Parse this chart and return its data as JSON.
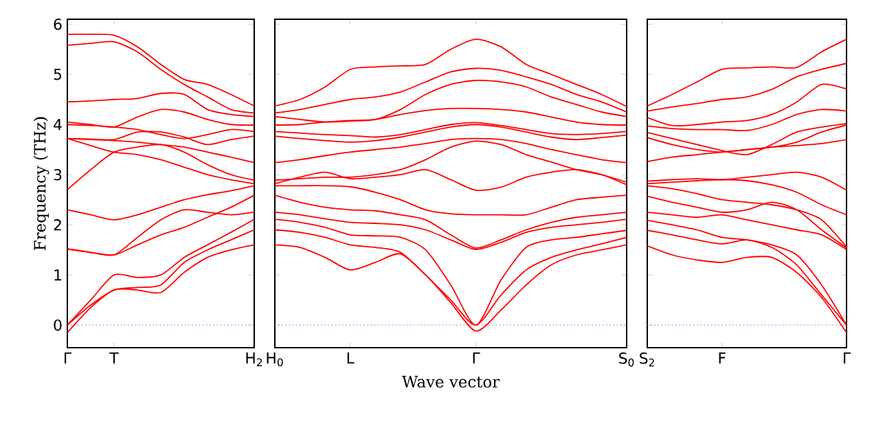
{
  "chart_data": [
    {
      "type": "line",
      "ylabel": "Frequency (THz)",
      "marker": "none",
      "line_style": "solid",
      "categories": [
        "Γ",
        null,
        "T",
        null,
        null,
        null,
        null,
        null,
        "H$_{2}$"
      ],
      "ylim": [
        -0.45,
        6.1
      ],
      "yticks": [
        0,
        1,
        2,
        3,
        4,
        5,
        6
      ],
      "ref_lines": [
        {
          "axis": "y",
          "value": 0,
          "color": "#6a6aff",
          "line_style": "dotted"
        }
      ],
      "series": [
        {
          "color": "#ff0000",
          "values": [
            5.8,
            5.8,
            5.78,
            5.55,
            5.2,
            4.9,
            4.8,
            4.6,
            4.37
          ]
        },
        {
          "color": "#ff0000",
          "values": [
            5.58,
            5.62,
            5.65,
            5.45,
            5.1,
            4.8,
            4.55,
            4.3,
            4.23
          ]
        },
        {
          "color": "#ff0000",
          "values": [
            4.45,
            4.47,
            4.5,
            4.52,
            4.62,
            4.6,
            4.3,
            4.2,
            4.16
          ]
        },
        {
          "color": "#ff0000",
          "values": [
            4.05,
            4.0,
            3.95,
            4.15,
            4.3,
            4.25,
            4.1,
            4.0,
            3.99
          ]
        },
        {
          "color": "#ff0000",
          "values": [
            4.0,
            3.98,
            3.95,
            3.9,
            3.8,
            3.72,
            3.8,
            3.9,
            3.86
          ]
        },
        {
          "color": "#ff0000",
          "values": [
            3.72,
            3.71,
            3.7,
            3.85,
            3.85,
            3.75,
            3.6,
            3.7,
            3.77
          ]
        },
        {
          "color": "#ff0000",
          "values": [
            3.72,
            3.7,
            3.68,
            3.65,
            3.6,
            3.55,
            3.45,
            3.35,
            3.24
          ]
        },
        {
          "color": "#ff0000",
          "values": [
            2.7,
            3.1,
            3.45,
            3.55,
            3.6,
            3.45,
            3.2,
            3.0,
            2.89
          ]
        },
        {
          "color": "#ff0000",
          "values": [
            3.72,
            3.58,
            3.45,
            3.4,
            3.3,
            3.15,
            3.0,
            2.9,
            2.82
          ]
        },
        {
          "color": "#ff0000",
          "values": [
            2.3,
            2.2,
            2.1,
            2.2,
            2.35,
            2.5,
            2.6,
            2.68,
            2.78
          ]
        },
        {
          "color": "#ff0000",
          "values": [
            1.52,
            1.45,
            1.4,
            1.75,
            2.1,
            2.3,
            2.25,
            2.2,
            2.25
          ]
        },
        {
          "color": "#ff0000",
          "values": [
            1.52,
            1.45,
            1.4,
            1.6,
            1.8,
            1.95,
            2.15,
            2.35,
            2.59
          ]
        },
        {
          "color": "#ff0000",
          "values": [
            0,
            0.5,
            1.0,
            0.95,
            1.0,
            1.35,
            1.6,
            1.85,
            2.11
          ]
        },
        {
          "color": "#ff0000",
          "values": [
            0,
            0.4,
            0.7,
            0.75,
            0.8,
            1.25,
            1.5,
            1.7,
            1.9
          ]
        },
        {
          "color": "#ff0000",
          "values": [
            -0.15,
            0.35,
            0.7,
            0.7,
            0.65,
            1.05,
            1.35,
            1.5,
            1.6
          ]
        }
      ]
    },
    {
      "type": "line",
      "xlabel": "Wave vector",
      "marker": "none",
      "line_style": "solid",
      "tick_labels": "x",
      "categories": [
        "H$_{0}$",
        null,
        null,
        "L",
        null,
        null,
        null,
        null,
        "Γ",
        null,
        null,
        null,
        null,
        null,
        "S$_{0}$"
      ],
      "ylim": [
        -0.45,
        6.1
      ],
      "yticks": [
        0,
        1,
        2,
        3,
        4,
        5,
        6
      ],
      "ref_lines": [
        {
          "axis": "y",
          "value": 0,
          "color": "#6a6aff",
          "line_style": "dotted"
        }
      ],
      "series": [
        {
          "color": "#ff0000",
          "values": [
            4.37,
            4.5,
            4.75,
            5.1,
            5.15,
            5.17,
            5.2,
            5.5,
            5.7,
            5.55,
            5.2,
            5.0,
            4.8,
            4.6,
            4.36
          ]
        },
        {
          "color": "#ff0000",
          "values": [
            4.23,
            4.3,
            4.4,
            4.5,
            4.55,
            4.65,
            4.85,
            5.05,
            5.12,
            5.08,
            4.95,
            4.8,
            4.6,
            4.45,
            4.25
          ]
        },
        {
          "color": "#ff0000",
          "values": [
            4.16,
            4.1,
            4.05,
            4.07,
            4.1,
            4.3,
            4.6,
            4.8,
            4.88,
            4.85,
            4.75,
            4.55,
            4.4,
            4.25,
            4.16
          ]
        },
        {
          "color": "#ff0000",
          "values": [
            3.99,
            4.0,
            4.05,
            4.08,
            4.1,
            4.2,
            4.28,
            4.32,
            4.32,
            4.3,
            4.25,
            4.15,
            4.05,
            4.0,
            3.99
          ]
        },
        {
          "color": "#ff0000",
          "values": [
            3.86,
            3.83,
            3.8,
            3.78,
            3.75,
            3.8,
            3.9,
            4.0,
            4.04,
            3.98,
            3.9,
            3.82,
            3.8,
            3.82,
            3.86
          ]
        },
        {
          "color": "#ff0000",
          "values": [
            3.77,
            3.72,
            3.68,
            3.65,
            3.68,
            3.75,
            3.85,
            3.95,
            4.0,
            3.95,
            3.85,
            3.75,
            3.7,
            3.74,
            3.79
          ]
        },
        {
          "color": "#ff0000",
          "values": [
            3.24,
            3.3,
            3.38,
            3.45,
            3.5,
            3.55,
            3.62,
            3.7,
            3.72,
            3.7,
            3.62,
            3.5,
            3.4,
            3.3,
            3.24
          ]
        },
        {
          "color": "#ff0000",
          "values": [
            2.89,
            2.92,
            2.95,
            2.95,
            3.0,
            3.1,
            3.3,
            3.55,
            3.67,
            3.6,
            3.4,
            3.25,
            3.1,
            3.0,
            2.85
          ]
        },
        {
          "color": "#ff0000",
          "values": [
            2.82,
            2.95,
            3.05,
            2.92,
            2.95,
            3.0,
            3.1,
            2.9,
            2.69,
            2.75,
            2.95,
            3.05,
            3.1,
            3.0,
            2.8
          ]
        },
        {
          "color": "#ff0000",
          "values": [
            2.78,
            2.78,
            2.78,
            2.76,
            2.65,
            2.5,
            2.3,
            2.22,
            2.2,
            2.2,
            2.2,
            2.35,
            2.5,
            2.55,
            2.59
          ]
        },
        {
          "color": "#ff0000",
          "values": [
            2.59,
            2.45,
            2.35,
            2.3,
            2.28,
            2.2,
            2.1,
            1.8,
            1.54,
            1.7,
            1.9,
            2.05,
            2.15,
            2.2,
            2.25
          ]
        },
        {
          "color": "#ff0000",
          "values": [
            2.25,
            2.2,
            2.12,
            2.05,
            2.03,
            2.0,
            1.9,
            1.7,
            1.51,
            1.65,
            1.85,
            1.95,
            2.0,
            2.05,
            2.11
          ]
        },
        {
          "color": "#ff0000",
          "values": [
            2.11,
            2.05,
            1.95,
            1.8,
            1.78,
            1.75,
            1.5,
            0.8,
            0,
            0.9,
            1.55,
            1.7,
            1.75,
            1.82,
            1.89
          ]
        },
        {
          "color": "#ff0000",
          "values": [
            1.9,
            1.85,
            1.75,
            1.6,
            1.55,
            1.45,
            1.0,
            0.5,
            0,
            0.6,
            1.1,
            1.35,
            1.5,
            1.62,
            1.75
          ]
        },
        {
          "color": "#ff0000",
          "values": [
            1.6,
            1.55,
            1.35,
            1.1,
            1.25,
            1.42,
            1.0,
            0.45,
            -0.12,
            0.3,
            0.8,
            1.2,
            1.4,
            1.5,
            1.6
          ]
        }
      ]
    },
    {
      "type": "line",
      "marker": "none",
      "line_style": "solid",
      "tick_labels": "x",
      "categories": [
        "S$_{2}$",
        null,
        null,
        "F",
        null,
        null,
        null,
        null,
        "Γ"
      ],
      "ylim": [
        -0.45,
        6.1
      ],
      "yticks": [
        0,
        1,
        2,
        3,
        4,
        5,
        6
      ],
      "ref_lines": [
        {
          "axis": "y",
          "value": 0,
          "color": "#6a6aff",
          "line_style": "dotted"
        }
      ],
      "series": [
        {
          "color": "#ff0000",
          "values": [
            4.37,
            4.6,
            4.85,
            5.1,
            5.13,
            5.15,
            5.14,
            5.45,
            5.7
          ]
        },
        {
          "color": "#ff0000",
          "values": [
            4.27,
            4.35,
            4.42,
            4.5,
            4.55,
            4.7,
            4.95,
            5.1,
            5.22
          ]
        },
        {
          "color": "#ff0000",
          "values": [
            4.14,
            3.98,
            4.0,
            4.05,
            4.08,
            4.2,
            4.45,
            4.8,
            4.71
          ]
        },
        {
          "color": "#ff0000",
          "values": [
            3.97,
            3.92,
            3.9,
            3.9,
            3.88,
            4.0,
            4.2,
            4.3,
            4.27
          ]
        },
        {
          "color": "#ff0000",
          "values": [
            3.84,
            3.72,
            3.6,
            3.48,
            3.4,
            3.6,
            3.85,
            3.95,
            4.02
          ]
        },
        {
          "color": "#ff0000",
          "values": [
            3.74,
            3.6,
            3.5,
            3.45,
            3.5,
            3.55,
            3.65,
            3.85,
            3.99
          ]
        },
        {
          "color": "#ff0000",
          "values": [
            3.26,
            3.35,
            3.4,
            3.45,
            3.5,
            3.55,
            3.58,
            3.62,
            3.7
          ]
        },
        {
          "color": "#ff0000",
          "values": [
            2.87,
            2.9,
            2.92,
            2.9,
            2.95,
            3.0,
            3.05,
            2.95,
            2.69
          ]
        },
        {
          "color": "#ff0000",
          "values": [
            2.82,
            2.85,
            2.88,
            2.9,
            2.88,
            2.8,
            2.65,
            2.4,
            2.2
          ]
        },
        {
          "color": "#ff0000",
          "values": [
            2.78,
            2.72,
            2.62,
            2.5,
            2.45,
            2.4,
            2.3,
            2.1,
            1.56
          ]
        },
        {
          "color": "#ff0000",
          "values": [
            2.57,
            2.45,
            2.35,
            2.25,
            2.3,
            2.45,
            2.3,
            1.9,
            1.54
          ]
        },
        {
          "color": "#ff0000",
          "values": [
            2.25,
            2.2,
            2.15,
            2.2,
            2.1,
            2.0,
            1.9,
            1.8,
            1.51
          ]
        },
        {
          "color": "#ff0000",
          "values": [
            2.09,
            2.0,
            1.9,
            1.75,
            1.7,
            1.6,
            1.4,
            0.8,
            0
          ]
        },
        {
          "color": "#ff0000",
          "values": [
            1.89,
            1.8,
            1.7,
            1.62,
            1.7,
            1.55,
            1.2,
            0.6,
            0
          ]
        },
        {
          "color": "#ff0000",
          "values": [
            1.58,
            1.4,
            1.3,
            1.25,
            1.35,
            1.35,
            1.05,
            0.55,
            -0.15
          ]
        }
      ]
    }
  ]
}
